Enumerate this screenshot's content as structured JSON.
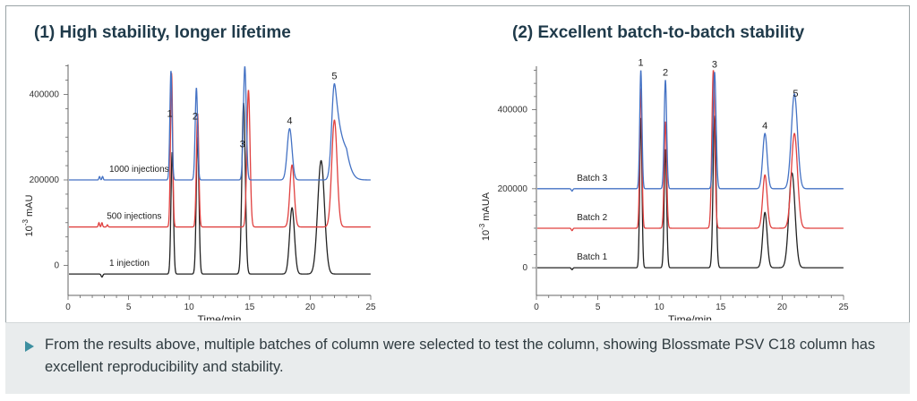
{
  "note": {
    "text": "From the results above, multiple batches of column were selected to test the column, showing Blossmate PSV C18 column has excellent reproducibility and stability."
  },
  "chart_data": [
    {
      "type": "line",
      "title": "(1) High stability, longer lifetime",
      "xlabel": "Time/min",
      "ylabel_base": "10",
      "ylabel_exp": "-3",
      "ylabel_unit": " mAU",
      "xlim": [
        0,
        25
      ],
      "ylim": [
        -70000,
        470000
      ],
      "xticks": [
        0,
        5,
        10,
        15,
        20,
        25
      ],
      "yticks": [
        0,
        200000,
        400000
      ],
      "grid": false,
      "peak_labels": [
        "1",
        "2",
        "3",
        "4",
        "5"
      ],
      "peak_label_times": [
        8.4,
        10.5,
        14.4,
        18.3,
        22.0
      ],
      "series": [
        {
          "name": "1000 injections",
          "color": "#4472c4",
          "baseline": 200000,
          "label_time": 3.4,
          "peaks": [
            {
              "t": 2.6,
              "h": 8000,
              "w": 0.05
            },
            {
              "t": 2.85,
              "h": 8000,
              "w": 0.05
            },
            {
              "t": 8.5,
              "h": 255000,
              "w": 0.09
            },
            {
              "t": 10.6,
              "h": 215000,
              "w": 0.1
            },
            {
              "t": 14.6,
              "h": 265000,
              "w": 0.12
            },
            {
              "t": 18.3,
              "h": 120000,
              "w": 0.2
            },
            {
              "t": 22.0,
              "h": 225000,
              "w": 0.22,
              "tail": 0.45
            }
          ]
        },
        {
          "name": "500 injections",
          "color": "#e0403f",
          "baseline": 90000,
          "label_time": 3.2,
          "peaks": [
            {
              "t": 2.55,
              "h": 10000,
              "w": 0.05
            },
            {
              "t": 2.8,
              "h": 10000,
              "w": 0.05
            },
            {
              "t": 3.25,
              "h": 5000,
              "w": 0.05
            },
            {
              "t": 8.55,
              "h": 360000,
              "w": 0.09
            },
            {
              "t": 10.7,
              "h": 265000,
              "w": 0.1
            },
            {
              "t": 14.9,
              "h": 320000,
              "w": 0.13
            },
            {
              "t": 18.5,
              "h": 145000,
              "w": 0.18
            },
            {
              "t": 22.0,
              "h": 250000,
              "w": 0.22
            }
          ]
        },
        {
          "name": "1 injection",
          "color": "#222222",
          "baseline": -20000,
          "label_time": 3.4,
          "peaks": [
            {
              "t": 2.8,
              "h": -7000,
              "w": 0.07
            },
            {
              "t": 8.6,
              "h": 285000,
              "w": 0.1
            },
            {
              "t": 10.7,
              "h": 320000,
              "w": 0.11
            },
            {
              "t": 14.5,
              "h": 400000,
              "w": 0.14
            },
            {
              "t": 18.5,
              "h": 155000,
              "w": 0.2
            },
            {
              "t": 20.9,
              "h": 265000,
              "w": 0.28
            }
          ]
        }
      ]
    },
    {
      "type": "line",
      "title": "(2) Excellent batch-to-batch stability",
      "xlabel": "Time/min",
      "ylabel_base": "10",
      "ylabel_exp": "-3",
      "ylabel_unit": " mAUA",
      "xlim": [
        0,
        25
      ],
      "ylim": [
        -70000,
        510000
      ],
      "xticks": [
        0,
        5,
        10,
        15,
        20,
        25
      ],
      "yticks": [
        0,
        200000,
        400000
      ],
      "grid": false,
      "peak_labels": [
        "1",
        "2",
        "3",
        "4",
        "5"
      ],
      "peak_label_times": [
        8.5,
        10.5,
        14.5,
        18.6,
        21.1
      ],
      "series": [
        {
          "name": "Batch 3",
          "color": "#4472c4",
          "baseline": 200000,
          "label_time": 3.3,
          "peaks": [
            {
              "t": 2.9,
              "h": -6000,
              "w": 0.06
            },
            {
              "t": 8.5,
              "h": 300000,
              "w": 0.09
            },
            {
              "t": 10.5,
              "h": 275000,
              "w": 0.1
            },
            {
              "t": 14.5,
              "h": 295000,
              "w": 0.12
            },
            {
              "t": 18.6,
              "h": 140000,
              "w": 0.18
            },
            {
              "t": 21.0,
              "h": 240000,
              "w": 0.25
            }
          ]
        },
        {
          "name": "Batch 2",
          "color": "#e0403f",
          "baseline": 100000,
          "label_time": 3.3,
          "peaks": [
            {
              "t": 2.9,
              "h": -6000,
              "w": 0.06
            },
            {
              "t": 8.5,
              "h": 355000,
              "w": 0.09
            },
            {
              "t": 10.5,
              "h": 270000,
              "w": 0.1
            },
            {
              "t": 14.4,
              "h": 400000,
              "w": 0.12
            },
            {
              "t": 18.6,
              "h": 135000,
              "w": 0.18
            },
            {
              "t": 21.0,
              "h": 240000,
              "w": 0.25
            }
          ]
        },
        {
          "name": "Batch 1",
          "color": "#222222",
          "baseline": 0,
          "label_time": 3.3,
          "peaks": [
            {
              "t": 2.9,
              "h": -5000,
              "w": 0.06
            },
            {
              "t": 8.5,
              "h": 380000,
              "w": 0.09
            },
            {
              "t": 10.5,
              "h": 300000,
              "w": 0.1
            },
            {
              "t": 14.5,
              "h": 385000,
              "w": 0.12
            },
            {
              "t": 18.6,
              "h": 140000,
              "w": 0.18
            },
            {
              "t": 20.8,
              "h": 240000,
              "w": 0.25
            }
          ]
        }
      ]
    }
  ]
}
